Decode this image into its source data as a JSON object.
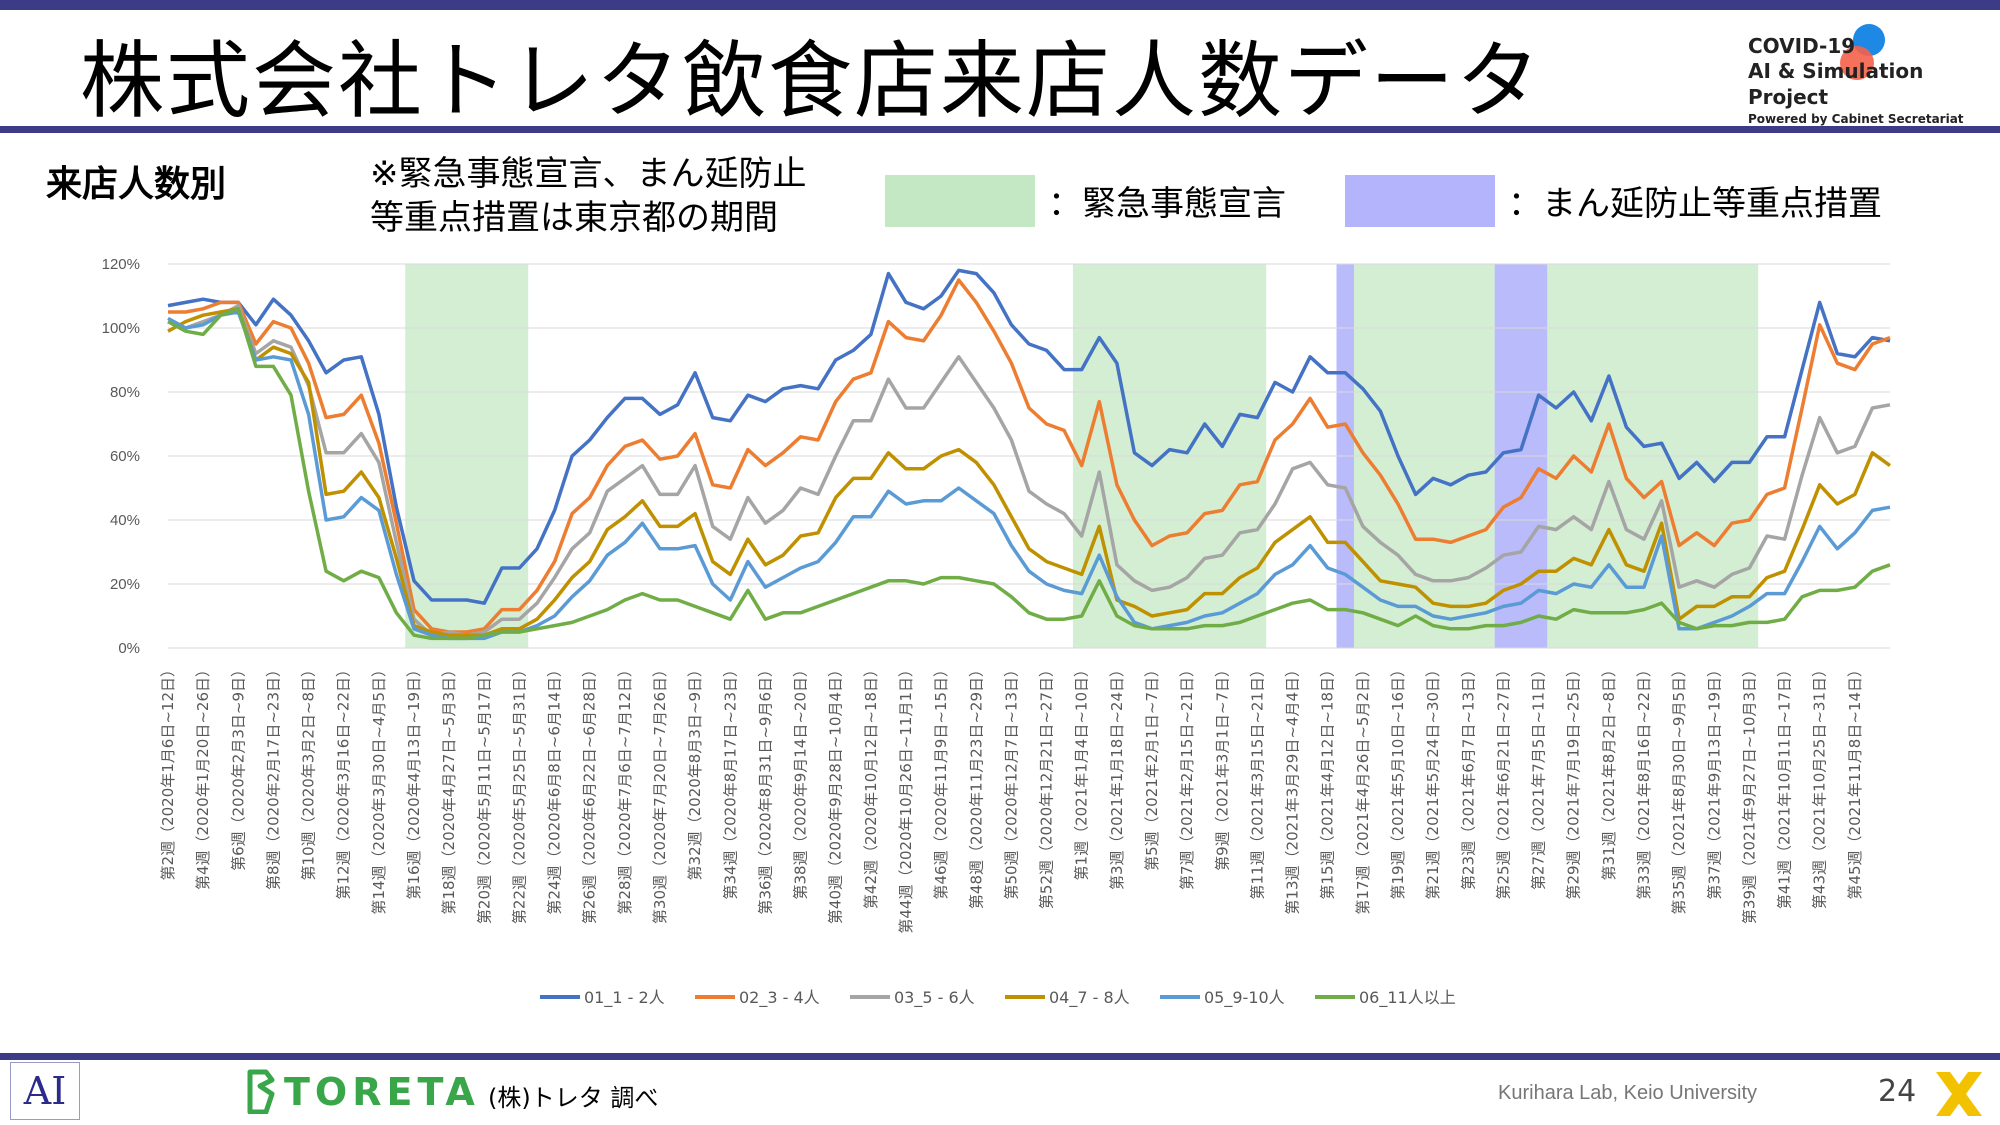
{
  "header": {
    "title": "株式会社トレタ飲食店来店人数データ",
    "covid_line1": "COVID-19",
    "covid_line2": "AI & Simulation Project",
    "covid_line3": "Powered by Cabinet Secretariat"
  },
  "subheader": {
    "label": "来店人数別",
    "note_line1": "※緊急事態宣言、まん延防止",
    "note_line2": "等重点措置は東京都の期間",
    "legend_emergency": "：緊急事態宣言",
    "legend_manen": "：まん延防止等重点措置"
  },
  "colors": {
    "emergency": "#c5e8c4",
    "manen": "#b3b4fb",
    "brand_bar": "#3b3b86"
  },
  "chart_data": {
    "type": "line",
    "ylim": [
      0,
      120
    ],
    "yticks": [
      "0%",
      "20%",
      "40%",
      "60%",
      "80%",
      "100%",
      "120%"
    ],
    "x_tick_labels": [
      "第2週（2020年1月6日~12日）",
      "第4週（2020年1月20日~26日）",
      "第6週（2020年2月3日~9日）",
      "第8週（2020年2月17日~23日）",
      "第10週（2020年3月2日~8日）",
      "第12週（2020年3月16日~22日）",
      "第14週（2020年3月30日~4月5日）",
      "第16週（2020年4月13日~19日）",
      "第18週（2020年4月27日~5月3日）",
      "第20週（2020年5月11日~5月17日）",
      "第22週（2020年5月25日~5月31日）",
      "第24週（2020年6月8日~6月14日）",
      "第26週（2020年6月22日~6月28日）",
      "第28週（2020年7月6日~7月12日）",
      "第30週（2020年7月20日~7月26日）",
      "第32週（2020年8月3日~9日）",
      "第34週（2020年8月17日~23日）",
      "第36週（2020年8月31日~9月6日）",
      "第38週（2020年9月14日~20日）",
      "第40週（2020年9月28日~10月4日）",
      "第42週（2020年10月12日~18日）",
      "第44週（2020年10月26日~11月1日）",
      "第46週（2020年11月9日~15日）",
      "第48週（2020年11月23日~29日）",
      "第50週（2020年12月7日~13日）",
      "第52週（2020年12月21日~27日）",
      "第1週（2021年1月4日~10日）",
      "第3週（2021年1月18日~24日）",
      "第5週（2021年2月1日~7日）",
      "第7週（2021年2月15日~21日）",
      "第9週（2021年3月1日~7日）",
      "第11週（2021年3月15日~21日）",
      "第13週（2021年3月29日~4月4日）",
      "第15週（2021年4月12日~18日）",
      "第17週（2021年4月26日~5月2日）",
      "第19週（2021年5月10日~16日）",
      "第21週（2021年5月24日~30日）",
      "第23週（2021年6月7日~13日）",
      "第25週（2021年6月21日~27日）",
      "第27週（2021年7月5日~11日）",
      "第29週（2021年7月19日~25日）",
      "第31週（2021年8月2日~8日）",
      "第33週（2021年8月16日~22日）",
      "第35週（2021年8月30日~9月5日）",
      "第37週（2021年9月13日~19日）",
      "第39週（2021年9月27日~10月3日）",
      "第41週（2021年10月11日~17日）",
      "第43週（2021年10月25日~31日）",
      "第45週（2021年11月8日~14日）"
    ],
    "shaded_periods": [
      {
        "type": "emergency",
        "from_week": 13.5,
        "to_week": 20.5
      },
      {
        "type": "manen",
        "from_week": 66.5,
        "to_week": 67.5
      },
      {
        "type": "emergency",
        "from_week": 51.5,
        "to_week": 62.5
      },
      {
        "type": "emergency",
        "from_week": 67.5,
        "to_week": 75.5
      },
      {
        "type": "manen",
        "from_week": 75.5,
        "to_week": 78.5
      },
      {
        "type": "emergency",
        "from_week": 78.5,
        "to_week": 90.5
      }
    ],
    "series": [
      {
        "name": "01_1 - 2人",
        "color": "#4472c4",
        "values": [
          107,
          108,
          109,
          108,
          108,
          101,
          109,
          104,
          96,
          86,
          90,
          91,
          73,
          44,
          21,
          15,
          15,
          15,
          14,
          25,
          25,
          31,
          43,
          60,
          65,
          72,
          78,
          78,
          73,
          76,
          86,
          72,
          71,
          79,
          77,
          81,
          82,
          81,
          90,
          93,
          98,
          117,
          108,
          106,
          110,
          118,
          117,
          111,
          101,
          95,
          93,
          87,
          87,
          97,
          89,
          61,
          57,
          62,
          61,
          70,
          63,
          73,
          72,
          83,
          80,
          91,
          86,
          86,
          81,
          74,
          60,
          48,
          53,
          51,
          54,
          55,
          61,
          62,
          79,
          75,
          80,
          71,
          85,
          69,
          63,
          64,
          53,
          58,
          52,
          58,
          58,
          66,
          66,
          87,
          108,
          92,
          91,
          97,
          96
        ]
      },
      {
        "name": "02_3 - 4人",
        "color": "#ed7d31",
        "values": [
          105,
          105,
          106,
          108,
          108,
          95,
          102,
          100,
          89,
          72,
          73,
          79,
          64,
          39,
          12,
          6,
          5,
          5,
          6,
          12,
          12,
          18,
          27,
          42,
          47,
          57,
          63,
          65,
          59,
          60,
          67,
          51,
          50,
          62,
          57,
          61,
          66,
          65,
          77,
          84,
          86,
          102,
          97,
          96,
          104,
          115,
          108,
          99,
          89,
          75,
          70,
          68,
          57,
          77,
          51,
          40,
          32,
          35,
          36,
          42,
          43,
          51,
          52,
          65,
          70,
          78,
          69,
          70,
          61,
          54,
          45,
          34,
          34,
          33,
          35,
          37,
          44,
          47,
          56,
          53,
          60,
          55,
          70,
          53,
          47,
          52,
          32,
          36,
          32,
          39,
          40,
          48,
          50,
          75,
          101,
          89,
          87,
          95,
          97
        ]
      },
      {
        "name": "03_5 - 6人",
        "color": "#a5a5a5",
        "values": [
          102,
          100,
          102,
          104,
          107,
          92,
          96,
          94,
          82,
          61,
          61,
          67,
          58,
          33,
          9,
          4,
          5,
          4,
          5,
          9,
          9,
          14,
          22,
          31,
          36,
          49,
          53,
          57,
          48,
          48,
          57,
          38,
          34,
          47,
          39,
          43,
          50,
          48,
          60,
          71,
          71,
          84,
          75,
          75,
          83,
          91,
          83,
          75,
          65,
          49,
          45,
          42,
          35,
          55,
          26,
          21,
          18,
          19,
          22,
          28,
          29,
          36,
          37,
          45,
          56,
          58,
          51,
          50,
          38,
          33,
          29,
          23,
          21,
          21,
          22,
          25,
          29,
          30,
          38,
          37,
          41,
          37,
          52,
          37,
          34,
          46,
          19,
          21,
          19,
          23,
          25,
          35,
          34,
          54,
          72,
          61,
          63,
          75,
          76
        ]
      },
      {
        "name": "04_7 - 8人",
        "color": "#bf9000",
        "values": [
          99,
          102,
          104,
          105,
          106,
          90,
          94,
          92,
          83,
          48,
          49,
          55,
          47,
          28,
          7,
          5,
          4,
          4,
          4,
          6,
          6,
          9,
          15,
          22,
          27,
          37,
          41,
          46,
          38,
          38,
          42,
          27,
          23,
          34,
          26,
          29,
          35,
          36,
          47,
          53,
          53,
          61,
          56,
          56,
          60,
          62,
          58,
          51,
          41,
          31,
          27,
          25,
          23,
          38,
          15,
          13,
          10,
          11,
          12,
          17,
          17,
          22,
          25,
          33,
          37,
          41,
          33,
          33,
          27,
          21,
          20,
          19,
          14,
          13,
          13,
          14,
          18,
          20,
          24,
          24,
          28,
          26,
          37,
          26,
          24,
          39,
          9,
          13,
          13,
          16,
          16,
          22,
          24,
          37,
          51,
          45,
          48,
          61,
          57
        ]
      },
      {
        "name": "05_9-10人",
        "color": "#5b9bd5",
        "values": [
          103,
          100,
          101,
          104,
          105,
          90,
          91,
          90,
          73,
          40,
          41,
          47,
          43,
          23,
          6,
          4,
          3,
          3,
          3,
          5,
          5,
          7,
          10,
          16,
          21,
          29,
          33,
          39,
          31,
          31,
          32,
          20,
          15,
          27,
          19,
          22,
          25,
          27,
          33,
          41,
          41,
          49,
          45,
          46,
          46,
          50,
          46,
          42,
          32,
          24,
          20,
          18,
          17,
          29,
          16,
          8,
          6,
          7,
          8,
          10,
          11,
          14,
          17,
          23,
          26,
          32,
          25,
          23,
          19,
          15,
          13,
          13,
          10,
          9,
          10,
          11,
          13,
          14,
          18,
          17,
          20,
          19,
          26,
          19,
          19,
          35,
          6,
          6,
          8,
          10,
          13,
          17,
          17,
          27,
          38,
          31,
          36,
          43,
          44
        ]
      },
      {
        "name": "06_11人以上",
        "color": "#70ad47",
        "values": [
          102,
          99,
          98,
          104,
          106,
          88,
          88,
          79,
          49,
          24,
          21,
          24,
          22,
          11,
          4,
          3,
          3,
          3,
          4,
          5,
          5,
          6,
          7,
          8,
          10,
          12,
          15,
          17,
          15,
          15,
          13,
          11,
          9,
          18,
          9,
          11,
          11,
          13,
          15,
          17,
          19,
          21,
          21,
          20,
          22,
          22,
          21,
          20,
          16,
          11,
          9,
          9,
          10,
          21,
          10,
          7,
          6,
          6,
          6,
          7,
          7,
          8,
          10,
          12,
          14,
          15,
          12,
          12,
          11,
          9,
          7,
          10,
          7,
          6,
          6,
          7,
          7,
          8,
          10,
          9,
          12,
          11,
          11,
          11,
          12,
          14,
          8,
          6,
          7,
          7,
          8,
          8,
          9,
          16,
          18,
          18,
          19,
          24,
          26
        ]
      }
    ]
  },
  "footer": {
    "ai_logo": "AI",
    "toreta_logo": "TORETA",
    "source": "(株)トレタ 調べ",
    "lab": "Kurihara Lab, Keio University",
    "page": "24"
  }
}
